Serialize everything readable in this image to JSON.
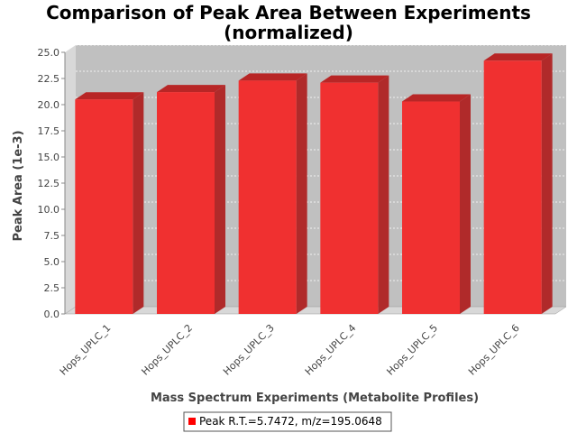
{
  "chart_data": {
    "type": "bar",
    "title": "Comparison of Peak Area Between Experiments",
    "subtitle": "(normalized)",
    "xlabel": "Mass Spectrum Experiments (Metabolite Profiles)",
    "ylabel": "Peak Area (1e-3)",
    "categories": [
      "Hops_UPLC_1",
      "Hops_UPLC_2",
      "Hops_UPLC_3",
      "Hops_UPLC_4",
      "Hops_UPLC_5",
      "Hops_UPLC_6"
    ],
    "series": [
      {
        "name": "Peak R.T.=5.7472, m/z=195.0648",
        "values": [
          20.5,
          21.2,
          22.3,
          22.1,
          20.3,
          24.2
        ]
      }
    ],
    "ylim": [
      0,
      25
    ],
    "yticks": [
      "0.0",
      "2.5",
      "5.0",
      "7.5",
      "10.0",
      "12.5",
      "15.0",
      "17.5",
      "20.0",
      "22.5",
      "25.0"
    ],
    "grid": true,
    "legend_position": "bottom",
    "colors": {
      "bar_front": "#f03030",
      "bar_top": "#b82626",
      "bar_side": "#b02a2a",
      "plot_back": "#c0c0c0",
      "grid": "#ffffff"
    }
  }
}
